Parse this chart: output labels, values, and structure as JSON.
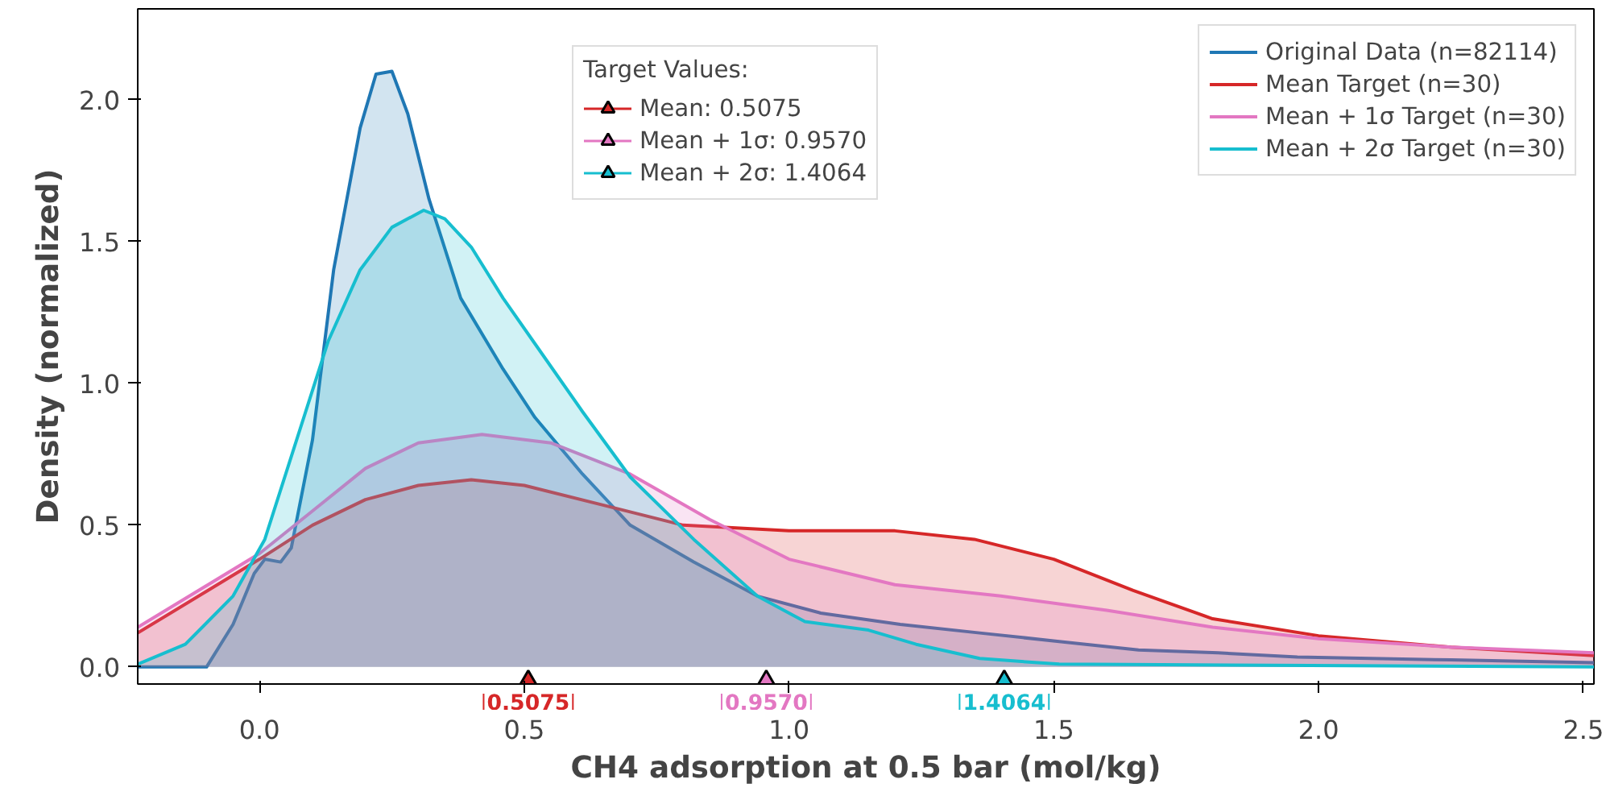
{
  "chart_data": {
    "type": "area",
    "xlabel": "CH4 adsorption at 0.5 bar (mol/kg)",
    "ylabel": "Density (normalized)",
    "xlim": [
      -0.23,
      2.52
    ],
    "ylim": [
      -0.06,
      2.32
    ],
    "xticks": [
      {
        "value": 0.0,
        "label": "0.0"
      },
      {
        "value": 0.5,
        "label": "0.5"
      },
      {
        "value": 1.0,
        "label": "1.0"
      },
      {
        "value": 1.5,
        "label": "1.5"
      },
      {
        "value": 2.0,
        "label": "2.0"
      },
      {
        "value": 2.5,
        "label": "2.5"
      }
    ],
    "yticks": [
      {
        "value": 0.0,
        "label": "0.0"
      },
      {
        "value": 0.5,
        "label": "0.5"
      },
      {
        "value": 1.0,
        "label": "1.0"
      },
      {
        "value": 1.5,
        "label": "1.5"
      },
      {
        "value": 2.0,
        "label": "2.0"
      }
    ],
    "grid": false,
    "legend": "top right",
    "legend_title": "Target Values:",
    "series": [
      {
        "name": "Original Data (n=82114)",
        "color": "#1f77b4",
        "x": [
          -0.23,
          -0.1,
          -0.05,
          -0.01,
          0.01,
          0.04,
          0.06,
          0.1,
          0.14,
          0.19,
          0.22,
          0.25,
          0.28,
          0.32,
          0.38,
          0.46,
          0.52,
          0.61,
          0.7,
          0.82,
          0.94,
          1.06,
          1.21,
          1.36,
          1.51,
          1.66,
          1.81,
          1.96,
          2.25,
          2.52
        ],
        "values": [
          0.0,
          0.0,
          0.15,
          0.33,
          0.38,
          0.37,
          0.42,
          0.8,
          1.4,
          1.9,
          2.09,
          2.1,
          1.95,
          1.65,
          1.3,
          1.05,
          0.88,
          0.68,
          0.5,
          0.37,
          0.25,
          0.19,
          0.15,
          0.12,
          0.09,
          0.06,
          0.05,
          0.035,
          0.025,
          0.015
        ]
      },
      {
        "name": "Mean Target (n=30)",
        "color": "#d62728",
        "x": [
          -0.23,
          0.0,
          0.1,
          0.2,
          0.3,
          0.4,
          0.5,
          0.65,
          0.8,
          1.0,
          1.2,
          1.35,
          1.5,
          1.65,
          1.8,
          2.0,
          2.25,
          2.52
        ],
        "values": [
          0.12,
          0.38,
          0.5,
          0.59,
          0.64,
          0.66,
          0.64,
          0.57,
          0.5,
          0.48,
          0.48,
          0.45,
          0.38,
          0.27,
          0.17,
          0.11,
          0.07,
          0.04
        ]
      },
      {
        "name": "Mean + 1σ Target (n=30)",
        "color": "#e377c2",
        "x": [
          -0.23,
          0.0,
          0.1,
          0.2,
          0.3,
          0.42,
          0.55,
          0.7,
          0.85,
          1.0,
          1.2,
          1.4,
          1.6,
          1.8,
          2.0,
          2.25,
          2.52
        ],
        "values": [
          0.14,
          0.4,
          0.55,
          0.7,
          0.79,
          0.82,
          0.79,
          0.68,
          0.52,
          0.38,
          0.29,
          0.25,
          0.2,
          0.14,
          0.1,
          0.07,
          0.05
        ]
      },
      {
        "name": "Mean + 2σ Target (n=30)",
        "color": "#17becf",
        "x": [
          -0.23,
          -0.14,
          -0.05,
          0.01,
          0.07,
          0.13,
          0.19,
          0.25,
          0.31,
          0.35,
          0.4,
          0.46,
          0.52,
          0.61,
          0.7,
          0.82,
          0.94,
          1.03,
          1.15,
          1.24,
          1.36,
          1.51,
          2.52
        ],
        "values": [
          0.01,
          0.08,
          0.25,
          0.45,
          0.8,
          1.15,
          1.4,
          1.55,
          1.61,
          1.58,
          1.48,
          1.3,
          1.14,
          0.9,
          0.67,
          0.45,
          0.25,
          0.16,
          0.13,
          0.08,
          0.03,
          0.01,
          0.0
        ]
      },
      {
        "name": "Mean: 0.5075",
        "type": "scatter",
        "marker": "triangle",
        "color": "#d62728",
        "x": [
          0.5075
        ],
        "values": [
          -0.055
        ]
      },
      {
        "name": "Mean + 1σ: 0.9570",
        "type": "scatter",
        "marker": "triangle",
        "color": "#e377c2",
        "x": [
          0.957
        ],
        "values": [
          -0.055
        ]
      },
      {
        "name": "Mean + 2σ: 1.4064",
        "type": "scatter",
        "marker": "triangle",
        "color": "#17becf",
        "x": [
          1.4064
        ],
        "values": [
          -0.055
        ]
      }
    ],
    "annotations": [
      "0.5075",
      "0.9570",
      "1.4064"
    ]
  }
}
